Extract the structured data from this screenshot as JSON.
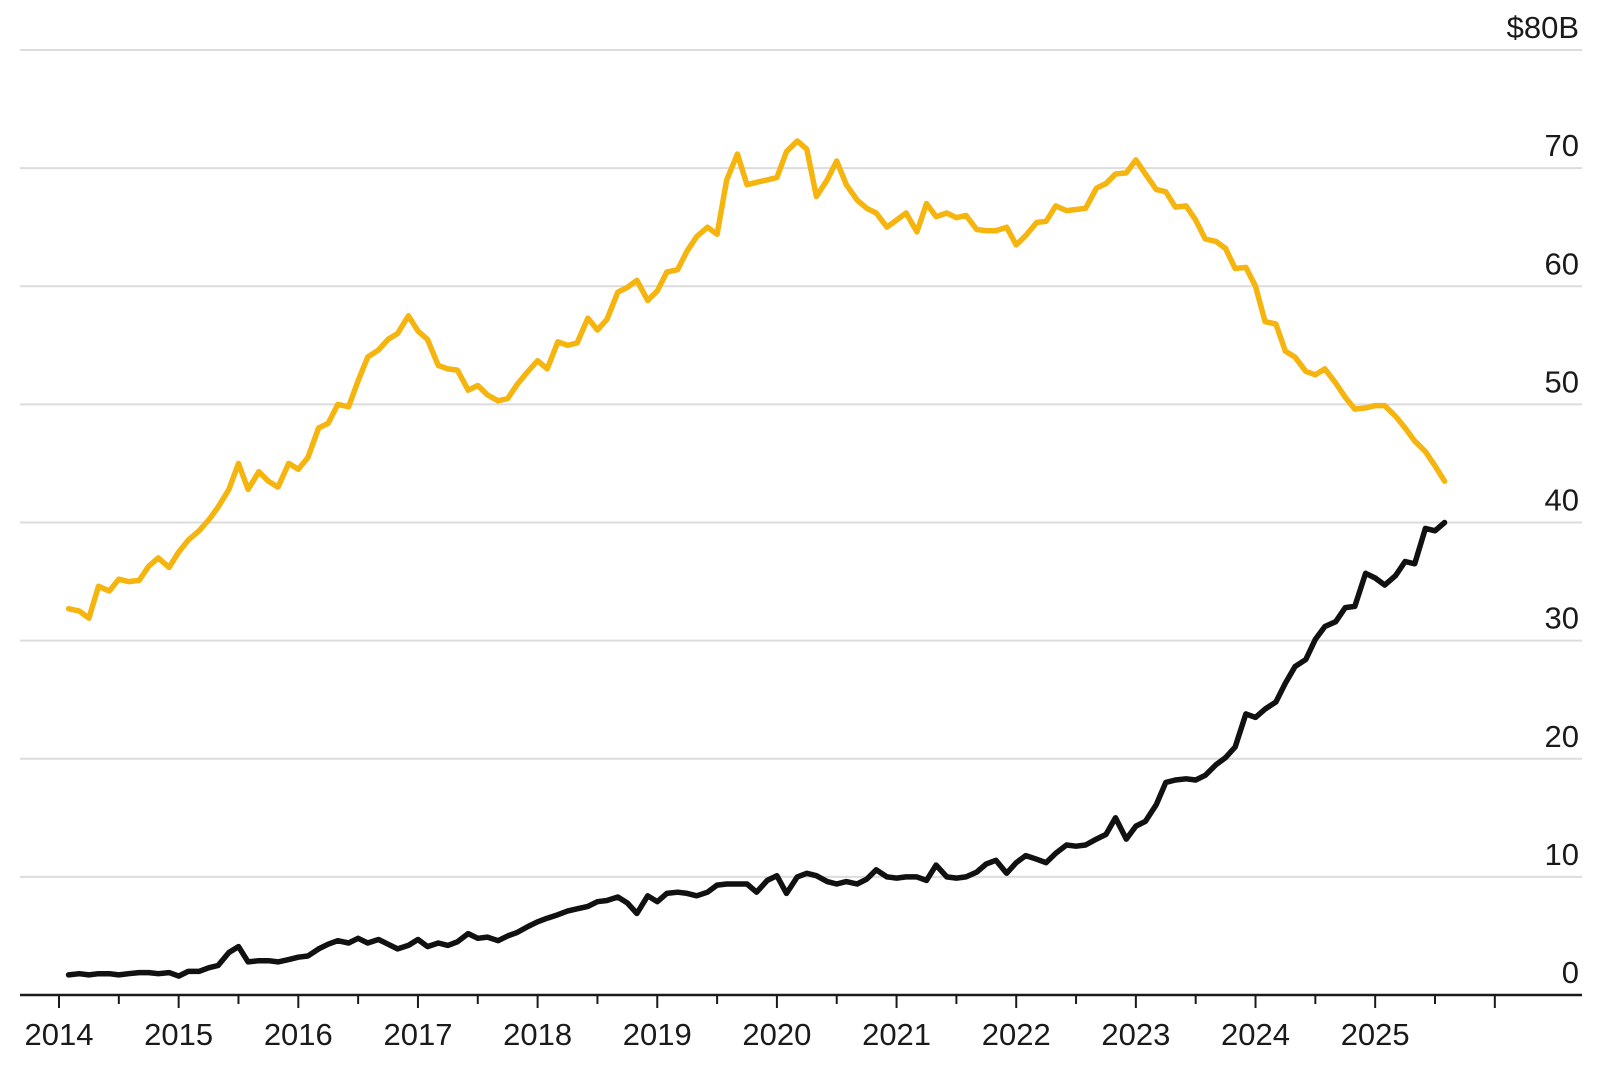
{
  "chart_data": {
    "type": "line",
    "title": "",
    "xlabel": "",
    "ylabel": "",
    "xlim": [
      2014.0,
      2026.2
    ],
    "ylim": [
      0,
      80
    ],
    "grid": true,
    "legend": "none",
    "y_ticks": [
      {
        "value": 0,
        "label": "0"
      },
      {
        "value": 10,
        "label": "10"
      },
      {
        "value": 20,
        "label": "20"
      },
      {
        "value": 30,
        "label": "30"
      },
      {
        "value": 40,
        "label": "40"
      },
      {
        "value": 50,
        "label": "50"
      },
      {
        "value": 60,
        "label": "60"
      },
      {
        "value": 70,
        "label": "70"
      },
      {
        "value": 80,
        "label": "$80B"
      }
    ],
    "x_ticks": [
      {
        "value": 2014,
        "label": "2014"
      },
      {
        "value": 2015,
        "label": "2015"
      },
      {
        "value": 2016,
        "label": "2016"
      },
      {
        "value": 2017,
        "label": "2017"
      },
      {
        "value": 2018,
        "label": "2018"
      },
      {
        "value": 2019,
        "label": "2019"
      },
      {
        "value": 2020,
        "label": "2020"
      },
      {
        "value": 2021,
        "label": "2021"
      },
      {
        "value": 2022,
        "label": "2022"
      },
      {
        "value": 2023,
        "label": "2023"
      },
      {
        "value": 2024,
        "label": "2024"
      },
      {
        "value": 2025,
        "label": "2025"
      }
    ],
    "series": [
      {
        "color": "#f5b50e",
        "points": [
          [
            2014.08,
            32.7
          ],
          [
            2014.17,
            32.5
          ],
          [
            2014.25,
            31.9
          ],
          [
            2014.33,
            34.6
          ],
          [
            2014.42,
            34.2
          ],
          [
            2014.5,
            35.2
          ],
          [
            2014.58,
            35.0
          ],
          [
            2014.67,
            35.1
          ],
          [
            2014.75,
            36.3
          ],
          [
            2014.83,
            37.0
          ],
          [
            2014.92,
            36.2
          ],
          [
            2015.0,
            37.5
          ],
          [
            2015.08,
            38.5
          ],
          [
            2015.17,
            39.3
          ],
          [
            2015.25,
            40.2
          ],
          [
            2015.33,
            41.3
          ],
          [
            2015.42,
            42.8
          ],
          [
            2015.5,
            45.0
          ],
          [
            2015.58,
            42.8
          ],
          [
            2015.67,
            44.3
          ],
          [
            2015.75,
            43.5
          ],
          [
            2015.83,
            43.0
          ],
          [
            2015.92,
            45.0
          ],
          [
            2016.0,
            44.5
          ],
          [
            2016.08,
            45.5
          ],
          [
            2016.17,
            48.0
          ],
          [
            2016.25,
            48.4
          ],
          [
            2016.33,
            50.0
          ],
          [
            2016.42,
            49.8
          ],
          [
            2016.5,
            52.0
          ],
          [
            2016.58,
            54.0
          ],
          [
            2016.67,
            54.6
          ],
          [
            2016.75,
            55.5
          ],
          [
            2016.83,
            56.0
          ],
          [
            2016.92,
            57.5
          ],
          [
            2017.0,
            56.2
          ],
          [
            2017.08,
            55.5
          ],
          [
            2017.17,
            53.3
          ],
          [
            2017.25,
            53.0
          ],
          [
            2017.33,
            52.9
          ],
          [
            2017.42,
            51.2
          ],
          [
            2017.5,
            51.6
          ],
          [
            2017.58,
            50.8
          ],
          [
            2017.67,
            50.3
          ],
          [
            2017.75,
            50.5
          ],
          [
            2017.83,
            51.7
          ],
          [
            2017.92,
            52.8
          ],
          [
            2018.0,
            53.7
          ],
          [
            2018.08,
            53.0
          ],
          [
            2018.17,
            55.3
          ],
          [
            2018.25,
            55.0
          ],
          [
            2018.33,
            55.2
          ],
          [
            2018.42,
            57.3
          ],
          [
            2018.5,
            56.3
          ],
          [
            2018.58,
            57.2
          ],
          [
            2018.67,
            59.5
          ],
          [
            2018.75,
            59.9
          ],
          [
            2018.83,
            60.5
          ],
          [
            2018.92,
            58.8
          ],
          [
            2019.0,
            59.6
          ],
          [
            2019.08,
            61.2
          ],
          [
            2019.17,
            61.4
          ],
          [
            2019.25,
            63.0
          ],
          [
            2019.33,
            64.2
          ],
          [
            2019.42,
            65.0
          ],
          [
            2019.5,
            64.4
          ],
          [
            2019.58,
            69.0
          ],
          [
            2019.67,
            71.2
          ],
          [
            2019.75,
            68.6
          ],
          [
            2019.83,
            68.8
          ],
          [
            2019.92,
            69.0
          ],
          [
            2020.0,
            69.2
          ],
          [
            2020.08,
            71.4
          ],
          [
            2020.17,
            72.3
          ],
          [
            2020.25,
            71.6
          ],
          [
            2020.33,
            67.6
          ],
          [
            2020.42,
            69.0
          ],
          [
            2020.5,
            70.6
          ],
          [
            2020.58,
            68.6
          ],
          [
            2020.67,
            67.3
          ],
          [
            2020.75,
            66.6
          ],
          [
            2020.83,
            66.2
          ],
          [
            2020.92,
            65.0
          ],
          [
            2021.0,
            65.6
          ],
          [
            2021.08,
            66.2
          ],
          [
            2021.17,
            64.6
          ],
          [
            2021.25,
            67.0
          ],
          [
            2021.33,
            65.9
          ],
          [
            2021.42,
            66.2
          ],
          [
            2021.5,
            65.8
          ],
          [
            2021.58,
            66.0
          ],
          [
            2021.67,
            64.8
          ],
          [
            2021.75,
            64.7
          ],
          [
            2021.83,
            64.7
          ],
          [
            2021.92,
            65.0
          ],
          [
            2022.0,
            63.5
          ],
          [
            2022.08,
            64.3
          ],
          [
            2022.17,
            65.4
          ],
          [
            2022.25,
            65.5
          ],
          [
            2022.33,
            66.8
          ],
          [
            2022.42,
            66.4
          ],
          [
            2022.5,
            66.5
          ],
          [
            2022.58,
            66.6
          ],
          [
            2022.67,
            68.3
          ],
          [
            2022.75,
            68.7
          ],
          [
            2022.83,
            69.5
          ],
          [
            2022.92,
            69.6
          ],
          [
            2023.0,
            70.7
          ],
          [
            2023.08,
            69.5
          ],
          [
            2023.17,
            68.2
          ],
          [
            2023.25,
            68.0
          ],
          [
            2023.33,
            66.7
          ],
          [
            2023.42,
            66.8
          ],
          [
            2023.5,
            65.6
          ],
          [
            2023.58,
            64.0
          ],
          [
            2023.67,
            63.8
          ],
          [
            2023.75,
            63.2
          ],
          [
            2023.83,
            61.5
          ],
          [
            2023.92,
            61.6
          ],
          [
            2024.0,
            60.0
          ],
          [
            2024.08,
            57.0
          ],
          [
            2024.17,
            56.8
          ],
          [
            2024.25,
            54.5
          ],
          [
            2024.33,
            54.0
          ],
          [
            2024.42,
            52.8
          ],
          [
            2024.5,
            52.5
          ],
          [
            2024.58,
            53.0
          ],
          [
            2024.67,
            51.8
          ],
          [
            2024.75,
            50.6
          ],
          [
            2024.83,
            49.6
          ],
          [
            2024.92,
            49.7
          ],
          [
            2025.0,
            49.9
          ],
          [
            2025.08,
            49.9
          ],
          [
            2025.17,
            49.0
          ],
          [
            2025.25,
            48.0
          ],
          [
            2025.33,
            46.9
          ],
          [
            2025.42,
            46.0
          ],
          [
            2025.5,
            44.8
          ],
          [
            2025.58,
            43.5
          ]
        ]
      },
      {
        "color": "#111111",
        "points": [
          [
            2014.08,
            1.7
          ],
          [
            2014.17,
            1.8
          ],
          [
            2014.25,
            1.7
          ],
          [
            2014.33,
            1.8
          ],
          [
            2014.42,
            1.8
          ],
          [
            2014.5,
            1.7
          ],
          [
            2014.58,
            1.8
          ],
          [
            2014.67,
            1.9
          ],
          [
            2014.75,
            1.9
          ],
          [
            2014.83,
            1.8
          ],
          [
            2014.92,
            1.9
          ],
          [
            2015.0,
            1.6
          ],
          [
            2015.08,
            2.0
          ],
          [
            2015.17,
            2.0
          ],
          [
            2015.25,
            2.3
          ],
          [
            2015.33,
            2.5
          ],
          [
            2015.42,
            3.6
          ],
          [
            2015.5,
            4.1
          ],
          [
            2015.58,
            2.8
          ],
          [
            2015.67,
            2.9
          ],
          [
            2015.75,
            2.9
          ],
          [
            2015.83,
            2.8
          ],
          [
            2015.92,
            3.0
          ],
          [
            2016.0,
            3.2
          ],
          [
            2016.08,
            3.3
          ],
          [
            2016.17,
            3.9
          ],
          [
            2016.25,
            4.3
          ],
          [
            2016.33,
            4.6
          ],
          [
            2016.42,
            4.4
          ],
          [
            2016.5,
            4.8
          ],
          [
            2016.58,
            4.4
          ],
          [
            2016.67,
            4.7
          ],
          [
            2016.75,
            4.3
          ],
          [
            2016.83,
            3.9
          ],
          [
            2016.92,
            4.2
          ],
          [
            2017.0,
            4.7
          ],
          [
            2017.08,
            4.1
          ],
          [
            2017.17,
            4.4
          ],
          [
            2017.25,
            4.2
          ],
          [
            2017.33,
            4.5
          ],
          [
            2017.42,
            5.2
          ],
          [
            2017.5,
            4.8
          ],
          [
            2017.58,
            4.9
          ],
          [
            2017.67,
            4.6
          ],
          [
            2017.75,
            5.0
          ],
          [
            2017.83,
            5.3
          ],
          [
            2017.92,
            5.8
          ],
          [
            2018.0,
            6.2
          ],
          [
            2018.08,
            6.5
          ],
          [
            2018.17,
            6.8
          ],
          [
            2018.25,
            7.1
          ],
          [
            2018.33,
            7.3
          ],
          [
            2018.42,
            7.5
          ],
          [
            2018.5,
            7.9
          ],
          [
            2018.58,
            8.0
          ],
          [
            2018.67,
            8.3
          ],
          [
            2018.75,
            7.8
          ],
          [
            2018.83,
            6.9
          ],
          [
            2018.92,
            8.4
          ],
          [
            2019.0,
            7.9
          ],
          [
            2019.08,
            8.6
          ],
          [
            2019.17,
            8.7
          ],
          [
            2019.25,
            8.6
          ],
          [
            2019.33,
            8.4
          ],
          [
            2019.42,
            8.7
          ],
          [
            2019.5,
            9.3
          ],
          [
            2019.58,
            9.4
          ],
          [
            2019.67,
            9.4
          ],
          [
            2019.75,
            9.4
          ],
          [
            2019.83,
            8.7
          ],
          [
            2019.92,
            9.7
          ],
          [
            2020.0,
            10.1
          ],
          [
            2020.08,
            8.6
          ],
          [
            2020.17,
            10.0
          ],
          [
            2020.25,
            10.3
          ],
          [
            2020.33,
            10.1
          ],
          [
            2020.42,
            9.6
          ],
          [
            2020.5,
            9.4
          ],
          [
            2020.58,
            9.6
          ],
          [
            2020.67,
            9.4
          ],
          [
            2020.75,
            9.8
          ],
          [
            2020.83,
            10.6
          ],
          [
            2020.92,
            10.0
          ],
          [
            2021.0,
            9.9
          ],
          [
            2021.08,
            10.0
          ],
          [
            2021.17,
            10.0
          ],
          [
            2021.25,
            9.7
          ],
          [
            2021.33,
            11.0
          ],
          [
            2021.42,
            10.0
          ],
          [
            2021.5,
            9.9
          ],
          [
            2021.58,
            10.0
          ],
          [
            2021.67,
            10.4
          ],
          [
            2021.75,
            11.1
          ],
          [
            2021.83,
            11.4
          ],
          [
            2021.92,
            10.3
          ],
          [
            2022.0,
            11.2
          ],
          [
            2022.08,
            11.8
          ],
          [
            2022.17,
            11.5
          ],
          [
            2022.25,
            11.2
          ],
          [
            2022.33,
            12.0
          ],
          [
            2022.42,
            12.7
          ],
          [
            2022.5,
            12.6
          ],
          [
            2022.58,
            12.7
          ],
          [
            2022.67,
            13.2
          ],
          [
            2022.75,
            13.6
          ],
          [
            2022.83,
            15.0
          ],
          [
            2022.92,
            13.2
          ],
          [
            2023.0,
            14.3
          ],
          [
            2023.08,
            14.7
          ],
          [
            2023.17,
            16.1
          ],
          [
            2023.25,
            18.0
          ],
          [
            2023.33,
            18.2
          ],
          [
            2023.42,
            18.3
          ],
          [
            2023.5,
            18.2
          ],
          [
            2023.58,
            18.6
          ],
          [
            2023.67,
            19.5
          ],
          [
            2023.75,
            20.1
          ],
          [
            2023.83,
            21.0
          ],
          [
            2023.92,
            23.8
          ],
          [
            2024.0,
            23.5
          ],
          [
            2024.08,
            24.2
          ],
          [
            2024.17,
            24.8
          ],
          [
            2024.25,
            26.4
          ],
          [
            2024.33,
            27.8
          ],
          [
            2024.42,
            28.4
          ],
          [
            2024.5,
            30.1
          ],
          [
            2024.58,
            31.2
          ],
          [
            2024.67,
            31.6
          ],
          [
            2024.75,
            32.8
          ],
          [
            2024.83,
            32.9
          ],
          [
            2024.92,
            35.7
          ],
          [
            2025.0,
            35.3
          ],
          [
            2025.08,
            34.7
          ],
          [
            2025.17,
            35.5
          ],
          [
            2025.25,
            36.7
          ],
          [
            2025.33,
            36.5
          ],
          [
            2025.42,
            39.5
          ],
          [
            2025.5,
            39.3
          ],
          [
            2025.58,
            40.0
          ]
        ]
      }
    ]
  }
}
